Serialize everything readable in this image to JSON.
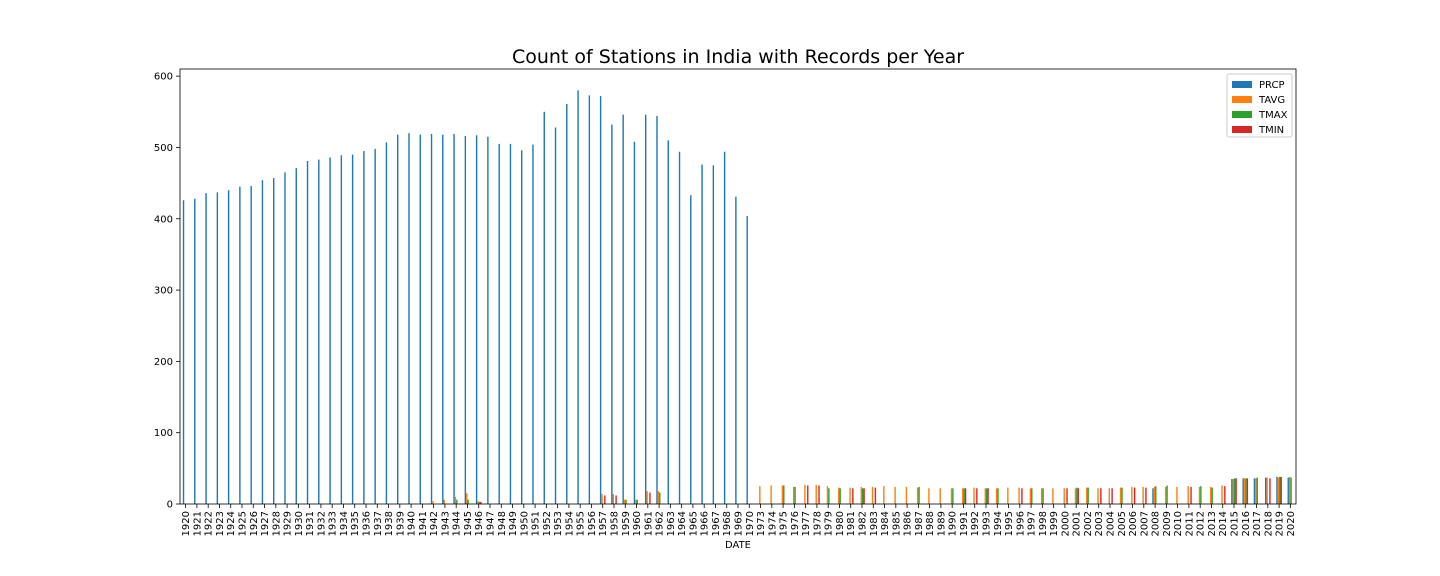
{
  "chart_data": {
    "type": "bar",
    "title": "Count of Stations in India with Records per Year",
    "xlabel": "DATE",
    "ylabel": "",
    "ylim": [
      0,
      610
    ],
    "yticks": [
      0,
      100,
      200,
      300,
      400,
      500,
      600
    ],
    "legend_position": "top-right",
    "grid": false,
    "categories": [
      "1920",
      "1921",
      "1922",
      "1923",
      "1924",
      "1925",
      "1926",
      "1927",
      "1928",
      "1929",
      "1930",
      "1931",
      "1932",
      "1933",
      "1934",
      "1935",
      "1936",
      "1937",
      "1938",
      "1939",
      "1940",
      "1941",
      "1942",
      "1943",
      "1944",
      "1945",
      "1946",
      "1947",
      "1948",
      "1949",
      "1950",
      "1951",
      "1952",
      "1953",
      "1954",
      "1955",
      "1956",
      "1957",
      "1958",
      "1959",
      "1960",
      "1961",
      "1962",
      "1963",
      "1964",
      "1965",
      "1966",
      "1967",
      "1968",
      "1969",
      "1970",
      "1973",
      "1974",
      "1975",
      "1976",
      "1977",
      "1978",
      "1979",
      "1980",
      "1981",
      "1982",
      "1983",
      "1984",
      "1985",
      "1986",
      "1987",
      "1988",
      "1989",
      "1990",
      "1991",
      "1992",
      "1993",
      "1994",
      "1995",
      "1996",
      "1997",
      "1998",
      "1999",
      "2000",
      "2001",
      "2002",
      "2003",
      "2004",
      "2005",
      "2006",
      "2007",
      "2008",
      "2009",
      "2010",
      "2011",
      "2012",
      "2013",
      "2014",
      "2015",
      "2016",
      "2017",
      "2018",
      "2019",
      "2020"
    ],
    "series": [
      {
        "name": "PRCP",
        "color": "#1f77b4",
        "values": [
          426,
          428,
          436,
          437,
          440,
          445,
          446,
          454,
          457,
          465,
          471,
          481,
          483,
          486,
          489,
          490,
          495,
          498,
          507,
          518,
          520,
          518,
          519,
          518,
          519,
          516,
          517,
          515,
          505,
          505,
          496,
          504,
          550,
          528,
          561,
          580,
          573,
          572,
          532,
          546,
          508,
          546,
          544,
          510,
          494,
          433,
          476,
          475,
          494,
          431,
          404,
          0,
          0,
          0,
          0,
          0,
          0,
          0,
          0,
          0,
          0,
          0,
          0,
          0,
          0,
          0,
          0,
          0,
          0,
          0,
          0,
          0,
          0,
          0,
          0,
          0,
          0,
          0,
          0,
          0,
          0,
          0,
          0,
          0,
          0,
          0,
          22,
          0,
          0,
          0,
          0,
          0,
          0,
          35,
          36,
          36,
          37,
          38,
          37
        ]
      },
      {
        "name": "TAVG",
        "color": "#ff7f0e",
        "values": [
          0,
          0,
          0,
          0,
          0,
          0,
          0,
          0,
          0,
          0,
          0,
          0,
          0,
          0,
          0,
          0,
          0,
          0,
          0,
          0,
          0,
          0,
          4,
          6,
          10,
          15,
          4,
          0,
          0,
          0,
          0,
          0,
          0,
          0,
          0,
          0,
          0,
          14,
          14,
          6,
          6,
          18,
          18,
          0,
          0,
          0,
          0,
          0,
          0,
          0,
          0,
          25,
          26,
          26,
          24,
          27,
          27,
          25,
          23,
          23,
          24,
          24,
          25,
          24,
          24,
          23,
          22,
          22,
          22,
          22,
          23,
          22,
          22,
          23,
          23,
          22,
          22,
          22,
          22,
          22,
          23,
          22,
          22,
          23,
          24,
          24,
          24,
          24,
          24,
          25,
          24,
          24,
          26,
          35,
          36,
          36,
          37,
          37,
          38
        ]
      },
      {
        "name": "TMAX",
        "color": "#2ca02c",
        "values": [
          0,
          0,
          0,
          0,
          0,
          0,
          0,
          0,
          0,
          0,
          0,
          0,
          0,
          0,
          0,
          0,
          0,
          0,
          0,
          0,
          0,
          0,
          0,
          0,
          6,
          6,
          3,
          0,
          0,
          0,
          0,
          0,
          0,
          0,
          0,
          0,
          0,
          0,
          0,
          6,
          6,
          0,
          16,
          0,
          0,
          0,
          0,
          0,
          0,
          0,
          0,
          0,
          0,
          26,
          24,
          0,
          0,
          22,
          22,
          0,
          22,
          0,
          0,
          0,
          0,
          24,
          0,
          0,
          22,
          22,
          0,
          22,
          22,
          0,
          0,
          22,
          22,
          0,
          0,
          23,
          23,
          0,
          0,
          23,
          0,
          0,
          25,
          26,
          0,
          0,
          25,
          23,
          0,
          36,
          36,
          37,
          0,
          38,
          37
        ]
      },
      {
        "name": "TMIN",
        "color": "#d62728",
        "values": [
          0,
          0,
          0,
          0,
          0,
          0,
          0,
          0,
          0,
          0,
          0,
          0,
          0,
          0,
          0,
          0,
          0,
          0,
          0,
          0,
          0,
          0,
          0,
          0,
          0,
          0,
          3,
          0,
          0,
          0,
          0,
          0,
          0,
          0,
          0,
          0,
          0,
          12,
          12,
          0,
          0,
          16,
          0,
          0,
          0,
          0,
          0,
          0,
          0,
          0,
          0,
          0,
          0,
          0,
          0,
          26,
          26,
          0,
          0,
          22,
          22,
          23,
          0,
          0,
          0,
          0,
          0,
          0,
          0,
          22,
          22,
          22,
          0,
          0,
          22,
          0,
          0,
          0,
          22,
          22,
          0,
          22,
          22,
          0,
          23,
          23,
          0,
          0,
          0,
          24,
          0,
          0,
          25,
          36,
          36,
          0,
          36,
          38,
          0
        ]
      }
    ]
  }
}
